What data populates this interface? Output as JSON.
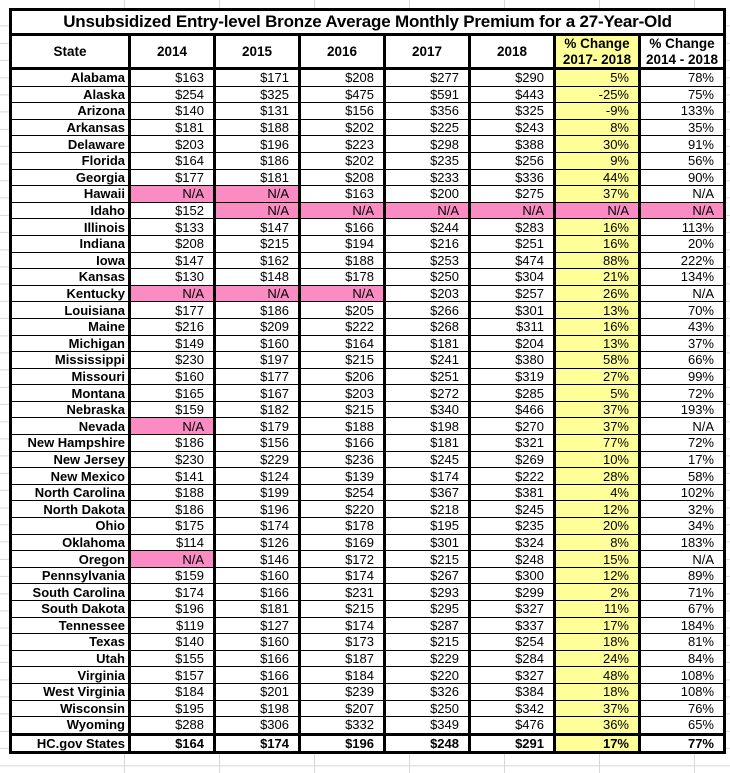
{
  "chart_data": {
    "type": "table",
    "title": "Unsubsidized Entry-level Bronze Average Monthly Premium for a 27-Year-Old",
    "columns": [
      "State",
      "2014",
      "2015",
      "2016",
      "2017",
      "2018",
      "% Change\n2017- 2018",
      "% Change\n2014 - 2018"
    ],
    "header_highlight_column_index": 6,
    "na_label": "N/A",
    "colors": {
      "highlight_yellow": "#ffff99",
      "na_pink": "#fa8cc3",
      "border": "#000000",
      "sheet_gridline": "#d8d8d8"
    },
    "rows": [
      {
        "state": "Alabama",
        "values": [
          "$163",
          "$171",
          "$208",
          "$277",
          "$290",
          "5%",
          "78%"
        ]
      },
      {
        "state": "Alaska",
        "values": [
          "$254",
          "$325",
          "$475",
          "$591",
          "$443",
          "-25%",
          "75%"
        ]
      },
      {
        "state": "Arizona",
        "values": [
          "$140",
          "$131",
          "$156",
          "$356",
          "$325",
          "-9%",
          "133%"
        ]
      },
      {
        "state": "Arkansas",
        "values": [
          "$181",
          "$188",
          "$202",
          "$225",
          "$243",
          "8%",
          "35%"
        ]
      },
      {
        "state": "Delaware",
        "values": [
          "$203",
          "$196",
          "$223",
          "$298",
          "$388",
          "30%",
          "91%"
        ]
      },
      {
        "state": "Florida",
        "values": [
          "$164",
          "$186",
          "$202",
          "$235",
          "$256",
          "9%",
          "56%"
        ]
      },
      {
        "state": "Georgia",
        "values": [
          "$177",
          "$181",
          "$208",
          "$233",
          "$336",
          "44%",
          "90%"
        ]
      },
      {
        "state": "Hawaii",
        "values": [
          "N/A",
          "N/A",
          "$163",
          "$200",
          "$275",
          "37%",
          "N/A"
        ],
        "pink": [
          0,
          1
        ]
      },
      {
        "state": "Idaho",
        "values": [
          "$152",
          "N/A",
          "N/A",
          "N/A",
          "N/A",
          "N/A",
          "N/A"
        ],
        "pink": [
          1,
          2,
          3,
          4,
          5,
          6
        ]
      },
      {
        "state": "Illinois",
        "values": [
          "$133",
          "$147",
          "$166",
          "$244",
          "$283",
          "16%",
          "113%"
        ]
      },
      {
        "state": "Indiana",
        "values": [
          "$208",
          "$215",
          "$194",
          "$216",
          "$251",
          "16%",
          "20%"
        ]
      },
      {
        "state": "Iowa",
        "values": [
          "$147",
          "$162",
          "$188",
          "$253",
          "$474",
          "88%",
          "222%"
        ]
      },
      {
        "state": "Kansas",
        "values": [
          "$130",
          "$148",
          "$178",
          "$250",
          "$304",
          "21%",
          "134%"
        ]
      },
      {
        "state": "Kentucky",
        "values": [
          "N/A",
          "N/A",
          "N/A",
          "$203",
          "$257",
          "26%",
          "N/A"
        ],
        "pink": [
          0,
          1,
          2
        ]
      },
      {
        "state": "Louisiana",
        "values": [
          "$177",
          "$186",
          "$205",
          "$266",
          "$301",
          "13%",
          "70%"
        ]
      },
      {
        "state": "Maine",
        "values": [
          "$216",
          "$209",
          "$222",
          "$268",
          "$311",
          "16%",
          "43%"
        ]
      },
      {
        "state": "Michigan",
        "values": [
          "$149",
          "$160",
          "$164",
          "$181",
          "$204",
          "13%",
          "37%"
        ]
      },
      {
        "state": "Mississippi",
        "values": [
          "$230",
          "$197",
          "$215",
          "$241",
          "$380",
          "58%",
          "66%"
        ]
      },
      {
        "state": "Missouri",
        "values": [
          "$160",
          "$177",
          "$206",
          "$251",
          "$319",
          "27%",
          "99%"
        ]
      },
      {
        "state": "Montana",
        "values": [
          "$165",
          "$167",
          "$203",
          "$272",
          "$285",
          "5%",
          "72%"
        ]
      },
      {
        "state": "Nebraska",
        "values": [
          "$159",
          "$182",
          "$215",
          "$340",
          "$466",
          "37%",
          "193%"
        ]
      },
      {
        "state": "Nevada",
        "values": [
          "N/A",
          "$179",
          "$188",
          "$198",
          "$270",
          "37%",
          "N/A"
        ],
        "pink": [
          0
        ]
      },
      {
        "state": "New Hampshire",
        "values": [
          "$186",
          "$156",
          "$166",
          "$181",
          "$321",
          "77%",
          "72%"
        ]
      },
      {
        "state": "New Jersey",
        "values": [
          "$230",
          "$229",
          "$236",
          "$245",
          "$269",
          "10%",
          "17%"
        ]
      },
      {
        "state": "New Mexico",
        "values": [
          "$141",
          "$124",
          "$139",
          "$174",
          "$222",
          "28%",
          "58%"
        ]
      },
      {
        "state": "North Carolina",
        "values": [
          "$188",
          "$199",
          "$254",
          "$367",
          "$381",
          "4%",
          "102%"
        ]
      },
      {
        "state": "North Dakota",
        "values": [
          "$186",
          "$196",
          "$220",
          "$218",
          "$245",
          "12%",
          "32%"
        ]
      },
      {
        "state": "Ohio",
        "values": [
          "$175",
          "$174",
          "$178",
          "$195",
          "$235",
          "20%",
          "34%"
        ]
      },
      {
        "state": "Oklahoma",
        "values": [
          "$114",
          "$126",
          "$169",
          "$301",
          "$324",
          "8%",
          "183%"
        ]
      },
      {
        "state": "Oregon",
        "values": [
          "N/A",
          "$146",
          "$172",
          "$215",
          "$248",
          "15%",
          "N/A"
        ],
        "pink": [
          0
        ]
      },
      {
        "state": "Pennsylvania",
        "values": [
          "$159",
          "$160",
          "$174",
          "$267",
          "$300",
          "12%",
          "89%"
        ]
      },
      {
        "state": "South Carolina",
        "values": [
          "$174",
          "$166",
          "$231",
          "$293",
          "$299",
          "2%",
          "71%"
        ]
      },
      {
        "state": "South Dakota",
        "values": [
          "$196",
          "$181",
          "$215",
          "$295",
          "$327",
          "11%",
          "67%"
        ]
      },
      {
        "state": "Tennessee",
        "values": [
          "$119",
          "$127",
          "$174",
          "$287",
          "$337",
          "17%",
          "184%"
        ]
      },
      {
        "state": "Texas",
        "values": [
          "$140",
          "$160",
          "$173",
          "$215",
          "$254",
          "18%",
          "81%"
        ]
      },
      {
        "state": "Utah",
        "values": [
          "$155",
          "$166",
          "$187",
          "$229",
          "$284",
          "24%",
          "84%"
        ]
      },
      {
        "state": "Virginia",
        "values": [
          "$157",
          "$166",
          "$184",
          "$220",
          "$327",
          "48%",
          "108%"
        ]
      },
      {
        "state": "West Virginia",
        "values": [
          "$184",
          "$201",
          "$239",
          "$326",
          "$384",
          "18%",
          "108%"
        ]
      },
      {
        "state": "Wisconsin",
        "values": [
          "$195",
          "$198",
          "$207",
          "$250",
          "$342",
          "37%",
          "76%"
        ]
      },
      {
        "state": "Wyoming",
        "values": [
          "$288",
          "$306",
          "$332",
          "$349",
          "$476",
          "36%",
          "65%"
        ]
      }
    ],
    "total_row": {
      "state": "HC.gov States",
      "values": [
        "$164",
        "$174",
        "$196",
        "$248",
        "$291",
        "17%",
        "77%"
      ]
    }
  }
}
